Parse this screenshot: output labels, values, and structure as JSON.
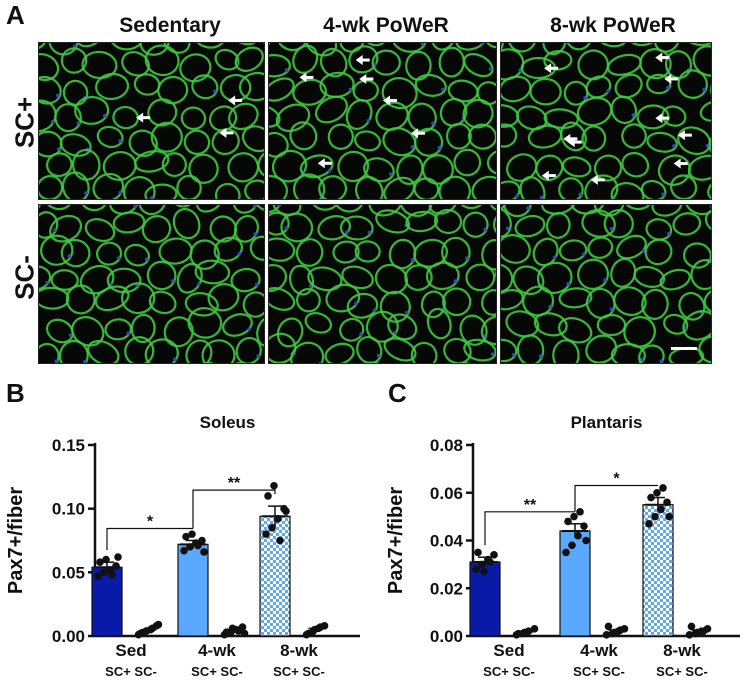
{
  "panel_a": {
    "letter": "A",
    "columns": [
      "Sedentary",
      "4-wk PoWeR",
      "8-wk PoWeR"
    ],
    "rows": [
      "SC+",
      "SC-"
    ],
    "colors": {
      "membrane": "#3ecb3e",
      "nuclei": "#3344cc",
      "background": "#050805",
      "arrow": "#ffffff"
    }
  },
  "chart_data": [
    {
      "type": "bar",
      "panel_letter": "B",
      "title": "Soleus",
      "ylabel": "Pax7+/fiber",
      "xlabel": "",
      "ylim": [
        0,
        0.15
      ],
      "yticks": [
        "0.00",
        "0.05",
        "0.10",
        "0.15"
      ],
      "yticks_values": [
        0,
        0.05,
        0.1,
        0.15
      ],
      "groups": [
        "Sed",
        "4-wk",
        "8-wk"
      ],
      "subgroup_label": "SC+ SC-",
      "bars": [
        {
          "group": "Sed",
          "sub": "SC+",
          "value": 0.054,
          "sem": 0.004,
          "fill": "#0a1aa8",
          "points": [
            0.047,
            0.05,
            0.052,
            0.055,
            0.058,
            0.06,
            0.048,
            0.062
          ]
        },
        {
          "group": "Sed",
          "sub": "SC-",
          "value": 0.004,
          "sem": 0.001,
          "fill": "#ffffff",
          "points": [
            0.001,
            0.003,
            0.005,
            0.008,
            0.002,
            0.004,
            0.006,
            0.009
          ]
        },
        {
          "group": "4-wk",
          "sub": "SC+",
          "value": 0.072,
          "sem": 0.003,
          "fill": "#5aa9ff",
          "points": [
            0.067,
            0.07,
            0.073,
            0.075,
            0.078,
            0.08,
            0.071,
            0.066
          ]
        },
        {
          "group": "4-wk",
          "sub": "SC-",
          "value": 0.004,
          "sem": 0.001,
          "fill": "#ffffff",
          "points": [
            0.001,
            0.002,
            0.005,
            0.007,
            0.003,
            0.006,
            0.004,
            0.002
          ]
        },
        {
          "group": "8-wk",
          "sub": "SC+",
          "value": 0.094,
          "sem": 0.008,
          "fill": "#a9cfff",
          "pattern": "checker",
          "points": [
            0.08,
            0.085,
            0.092,
            0.1,
            0.11,
            0.118,
            0.075,
            0.098
          ]
        },
        {
          "group": "8-wk",
          "sub": "SC-",
          "value": 0.005,
          "sem": 0.001,
          "fill": "#ffffff",
          "points": [
            0.001,
            0.003,
            0.006,
            0.008,
            0.002,
            0.005,
            0.007
          ]
        }
      ],
      "significance": [
        {
          "from": "Sed",
          "to": "4-wk",
          "label": "*"
        },
        {
          "from": "4-wk",
          "to": "8-wk",
          "label": "**"
        }
      ]
    },
    {
      "type": "bar",
      "panel_letter": "C",
      "title": "Plantaris",
      "ylabel": "Pax7+/fiber",
      "xlabel": "",
      "ylim": [
        0,
        0.08
      ],
      "yticks": [
        "0.00",
        "0.02",
        "0.04",
        "0.06",
        "0.08"
      ],
      "yticks_values": [
        0,
        0.02,
        0.04,
        0.06,
        0.08
      ],
      "groups": [
        "Sed",
        "4-wk",
        "8-wk"
      ],
      "subgroup_label": "SC+ SC-",
      "bars": [
        {
          "group": "Sed",
          "sub": "SC+",
          "value": 0.031,
          "sem": 0.002,
          "fill": "#0a1aa8",
          "points": [
            0.028,
            0.03,
            0.032,
            0.034,
            0.035,
            0.027,
            0.031
          ]
        },
        {
          "group": "Sed",
          "sub": "SC-",
          "value": 0.001,
          "sem": 0.0005,
          "fill": "#ffffff",
          "points": [
            0.0005,
            0.001,
            0.002,
            0.003,
            0.001,
            0.0015
          ]
        },
        {
          "group": "4-wk",
          "sub": "SC+",
          "value": 0.044,
          "sem": 0.003,
          "fill": "#5aa9ff",
          "points": [
            0.035,
            0.038,
            0.042,
            0.046,
            0.048,
            0.05,
            0.052,
            0.04
          ]
        },
        {
          "group": "4-wk",
          "sub": "SC-",
          "value": 0.002,
          "sem": 0.0005,
          "fill": "#ffffff",
          "points": [
            0.0005,
            0.001,
            0.002,
            0.003,
            0.004,
            0.0015,
            0.0025
          ]
        },
        {
          "group": "8-wk",
          "sub": "SC+",
          "value": 0.055,
          "sem": 0.003,
          "fill": "#a9cfff",
          "pattern": "checker",
          "points": [
            0.047,
            0.05,
            0.053,
            0.056,
            0.058,
            0.06,
            0.062,
            0.05
          ]
        },
        {
          "group": "8-wk",
          "sub": "SC-",
          "value": 0.002,
          "sem": 0.0005,
          "fill": "#ffffff",
          "points": [
            0.0005,
            0.001,
            0.002,
            0.003,
            0.004,
            0.0015,
            0.002
          ]
        }
      ],
      "significance": [
        {
          "from": "Sed",
          "to": "4-wk",
          "label": "**"
        },
        {
          "from": "4-wk",
          "to": "8-wk",
          "label": "*"
        }
      ]
    }
  ]
}
